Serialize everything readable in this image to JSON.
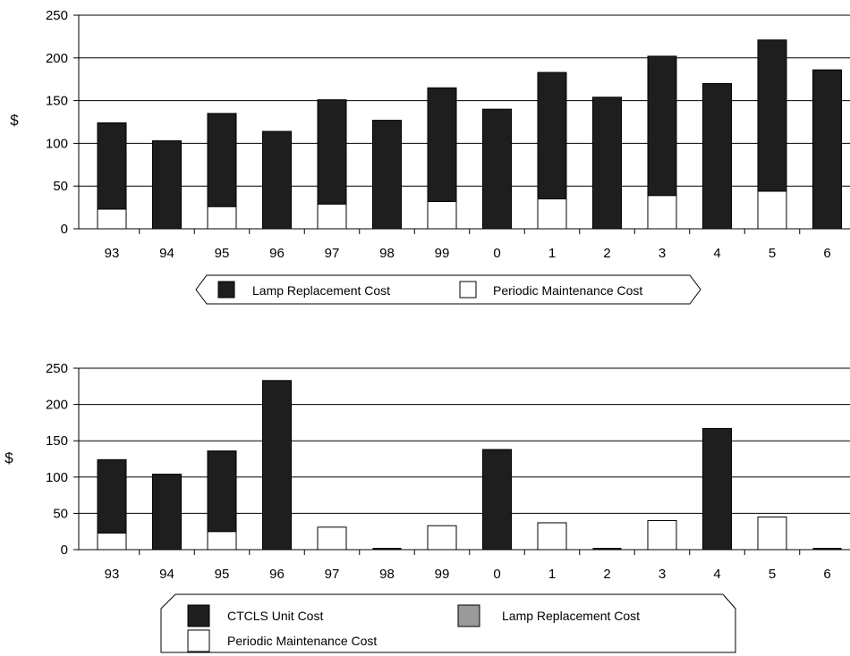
{
  "colors": {
    "ctcls": "#1e1e1e",
    "lamp": "#1e1e1e",
    "maintenance": "#ffffff",
    "lamp_legend": "#9a9a9a",
    "grid": "#000000"
  },
  "chart_data": [
    {
      "type": "bar",
      "stacked": true,
      "categories": [
        "93",
        "94",
        "95",
        "96",
        "97",
        "98",
        "99",
        "0",
        "1",
        "2",
        "3",
        "4",
        "5",
        "6"
      ],
      "series": [
        {
          "name": "Periodic Maintenance Cost",
          "values": [
            23,
            0,
            26,
            0,
            29,
            0,
            32,
            0,
            35,
            0,
            39,
            0,
            44,
            0
          ]
        },
        {
          "name": "Lamp Replacement Cost",
          "values": [
            101,
            103,
            109,
            114,
            122,
            127,
            133,
            140,
            148,
            154,
            163,
            170,
            177,
            186
          ]
        }
      ],
      "ylabel": "$",
      "ylim": [
        0,
        250
      ],
      "yticks": [
        "0",
        "50",
        "100",
        "150",
        "200",
        "250"
      ],
      "grid": true,
      "legend": [
        "Lamp Replacement Cost",
        "Periodic Maintenance Cost"
      ],
      "legend_position": "bottom"
    },
    {
      "type": "bar",
      "stacked": true,
      "categories": [
        "93",
        "94",
        "95",
        "96",
        "97",
        "98",
        "99",
        "0",
        "1",
        "2",
        "3",
        "4",
        "5",
        "6"
      ],
      "series": [
        {
          "name": "Periodic Maintenance Cost",
          "values": [
            23,
            0,
            25,
            0,
            31,
            0,
            33,
            0,
            37,
            0,
            40,
            0,
            45,
            0
          ]
        },
        {
          "name": "Lamp Replacement Cost",
          "values": [
            0,
            0,
            0,
            0,
            0,
            0,
            0,
            0,
            0,
            0,
            0,
            0,
            0,
            0
          ]
        },
        {
          "name": "CTCLS Unit Cost",
          "values": [
            101,
            104,
            111,
            233,
            0,
            0,
            0,
            138,
            0,
            0,
            0,
            167,
            0,
            0
          ]
        }
      ],
      "ylabel": "$",
      "ylim": [
        0,
        250
      ],
      "yticks": [
        "0",
        "50",
        "100",
        "150",
        "200",
        "250"
      ],
      "grid": true,
      "legend": [
        "CTCLS Unit Cost",
        "Lamp Replacement Cost",
        "Periodic Maintenance Cost"
      ],
      "legend_position": "bottom"
    }
  ]
}
